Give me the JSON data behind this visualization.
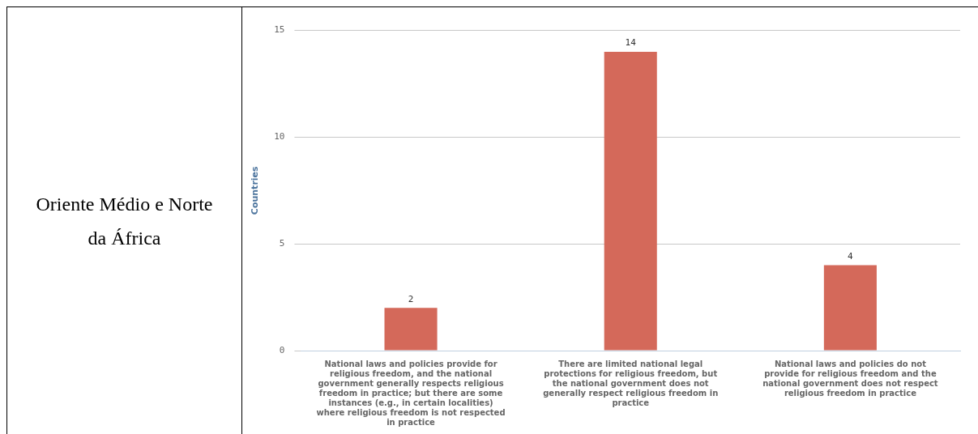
{
  "chart_data": {
    "type": "bar",
    "title": "Oriente Médio e Norte da África",
    "ylabel": "Countries",
    "categories": [
      "National laws and policies provide for religious freedom, and the national government generally respects religious freedom in practice; but there are some instances (e.g., in certain localities) where religious freedom is not respected in practice",
      "There are limited national legal protections for religious freedom, but the national government does not generally respect religious freedom in practice",
      "National laws and policies do not provide for religious freedom and the national government does not respect religious freedom in practice"
    ],
    "values": [
      2,
      14,
      4
    ],
    "color": "#d4695a",
    "ylim": [
      0,
      15
    ],
    "yticks": [
      0,
      5,
      10,
      15
    ],
    "grid": "y",
    "data_labels": true,
    "legend": false
  }
}
